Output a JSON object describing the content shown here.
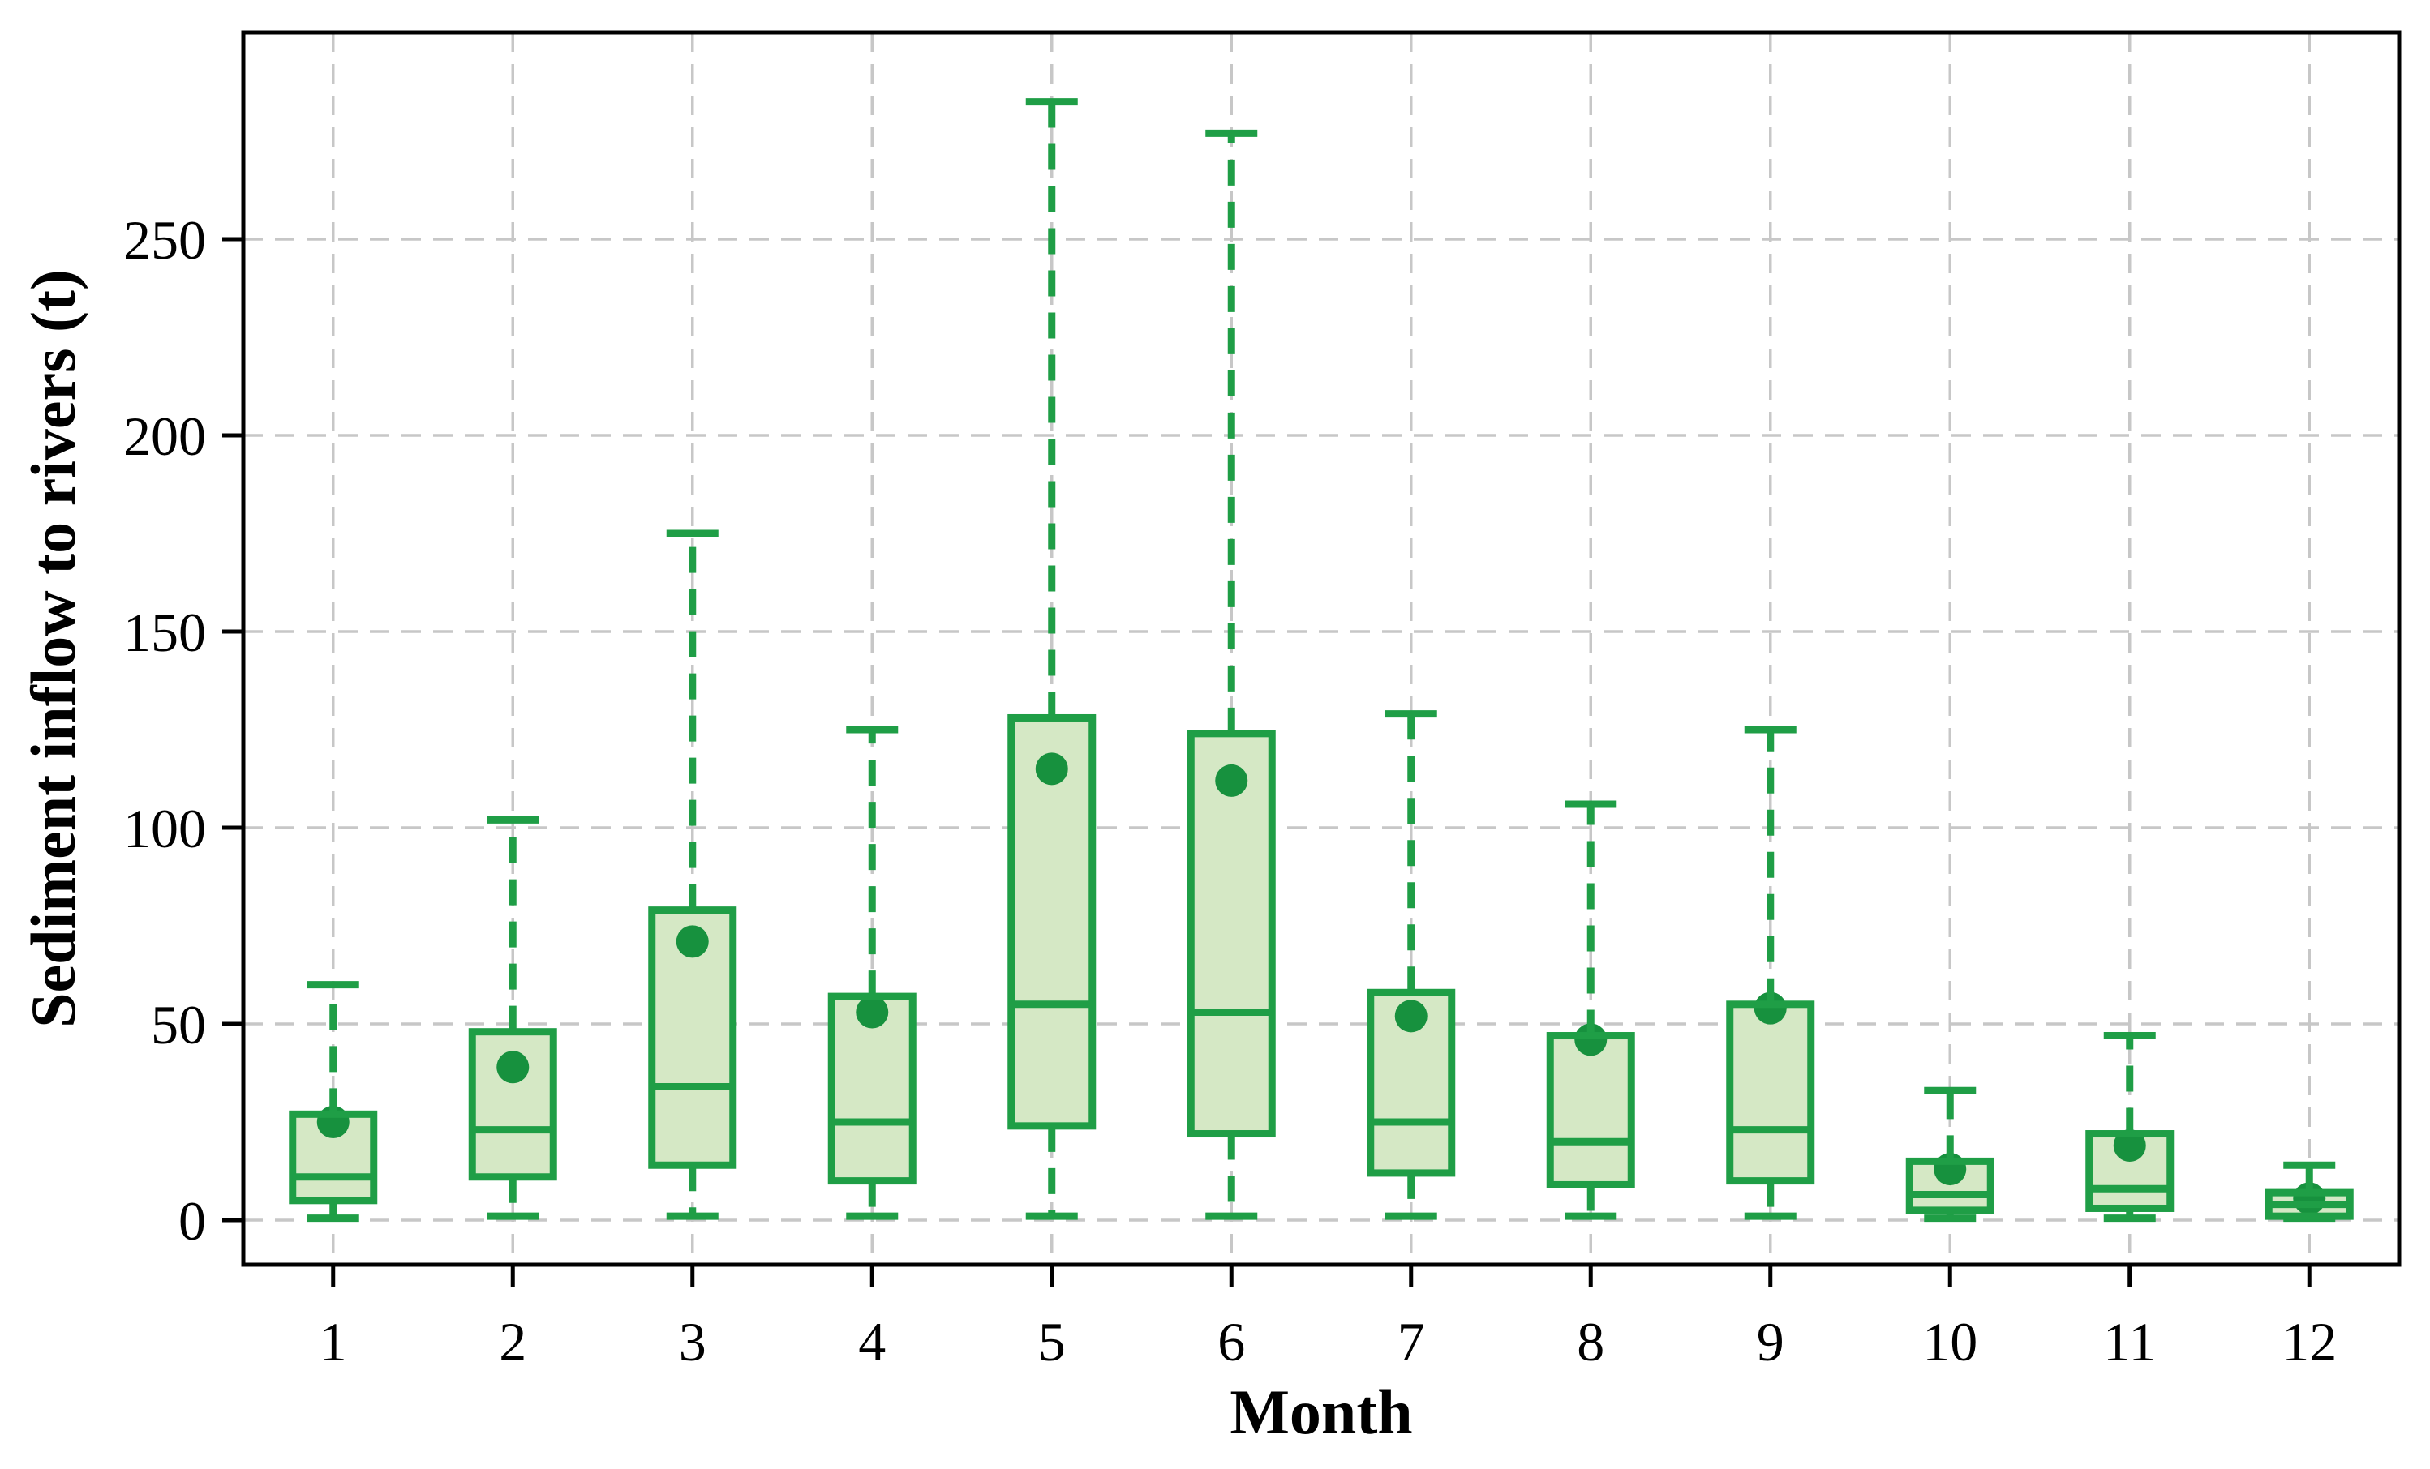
{
  "figure": {
    "background": "#ffffff"
  },
  "chart_data": {
    "type": "box",
    "title": "",
    "xlabel": "Month",
    "ylabel": "Sediment inflow to rivers (t)",
    "x_categories": [
      "1",
      "2",
      "3",
      "4",
      "5",
      "6",
      "7",
      "8",
      "9",
      "10",
      "11",
      "12"
    ],
    "y_ticks": [
      0,
      50,
      100,
      150,
      200,
      250
    ],
    "ylim": [
      -12,
      302
    ],
    "grid": {
      "horizontal": true,
      "vertical": true,
      "style": "dashed"
    },
    "legend": "none",
    "series": [
      {
        "month": "1",
        "whisker_low": 0.5,
        "q1": 5,
        "median": 11,
        "q3": 27,
        "whisker_high": 60,
        "mean": 25
      },
      {
        "month": "2",
        "whisker_low": 1,
        "q1": 11,
        "median": 23,
        "q3": 48,
        "whisker_high": 102,
        "mean": 39
      },
      {
        "month": "3",
        "whisker_low": 1,
        "q1": 14,
        "median": 34,
        "q3": 79,
        "whisker_high": 175,
        "mean": 71
      },
      {
        "month": "4",
        "whisker_low": 1,
        "q1": 10,
        "median": 25,
        "q3": 57,
        "whisker_high": 125,
        "mean": 53
      },
      {
        "month": "5",
        "whisker_low": 1,
        "q1": 24,
        "median": 55,
        "q3": 128,
        "whisker_high": 285,
        "mean": 115
      },
      {
        "month": "6",
        "whisker_low": 1,
        "q1": 22,
        "median": 53,
        "q3": 124,
        "whisker_high": 277,
        "mean": 112
      },
      {
        "month": "7",
        "whisker_low": 1,
        "q1": 12,
        "median": 25,
        "q3": 58,
        "whisker_high": 129,
        "mean": 52
      },
      {
        "month": "8",
        "whisker_low": 1,
        "q1": 9,
        "median": 20,
        "q3": 47,
        "whisker_high": 106,
        "mean": 46
      },
      {
        "month": "9",
        "whisker_low": 1,
        "q1": 10,
        "median": 23,
        "q3": 55,
        "whisker_high": 125,
        "mean": 54
      },
      {
        "month": "10",
        "whisker_low": 0.5,
        "q1": 2.5,
        "median": 6.5,
        "q3": 15,
        "whisker_high": 33,
        "mean": 13
      },
      {
        "month": "11",
        "whisker_low": 0.5,
        "q1": 3,
        "median": 8,
        "q3": 22,
        "whisker_high": 47,
        "mean": 19
      },
      {
        "month": "12",
        "whisker_low": 0.5,
        "q1": 1,
        "median": 4,
        "q3": 7,
        "whisker_high": 14,
        "mean": 5.5
      }
    ],
    "colors": {
      "box_edge": "#1f9e46",
      "box_fill": "#d5e8c5",
      "mean_dot": "#17913e",
      "grid": "#c7c7c7",
      "axis": "#000000",
      "background": "#ffffff"
    }
  }
}
